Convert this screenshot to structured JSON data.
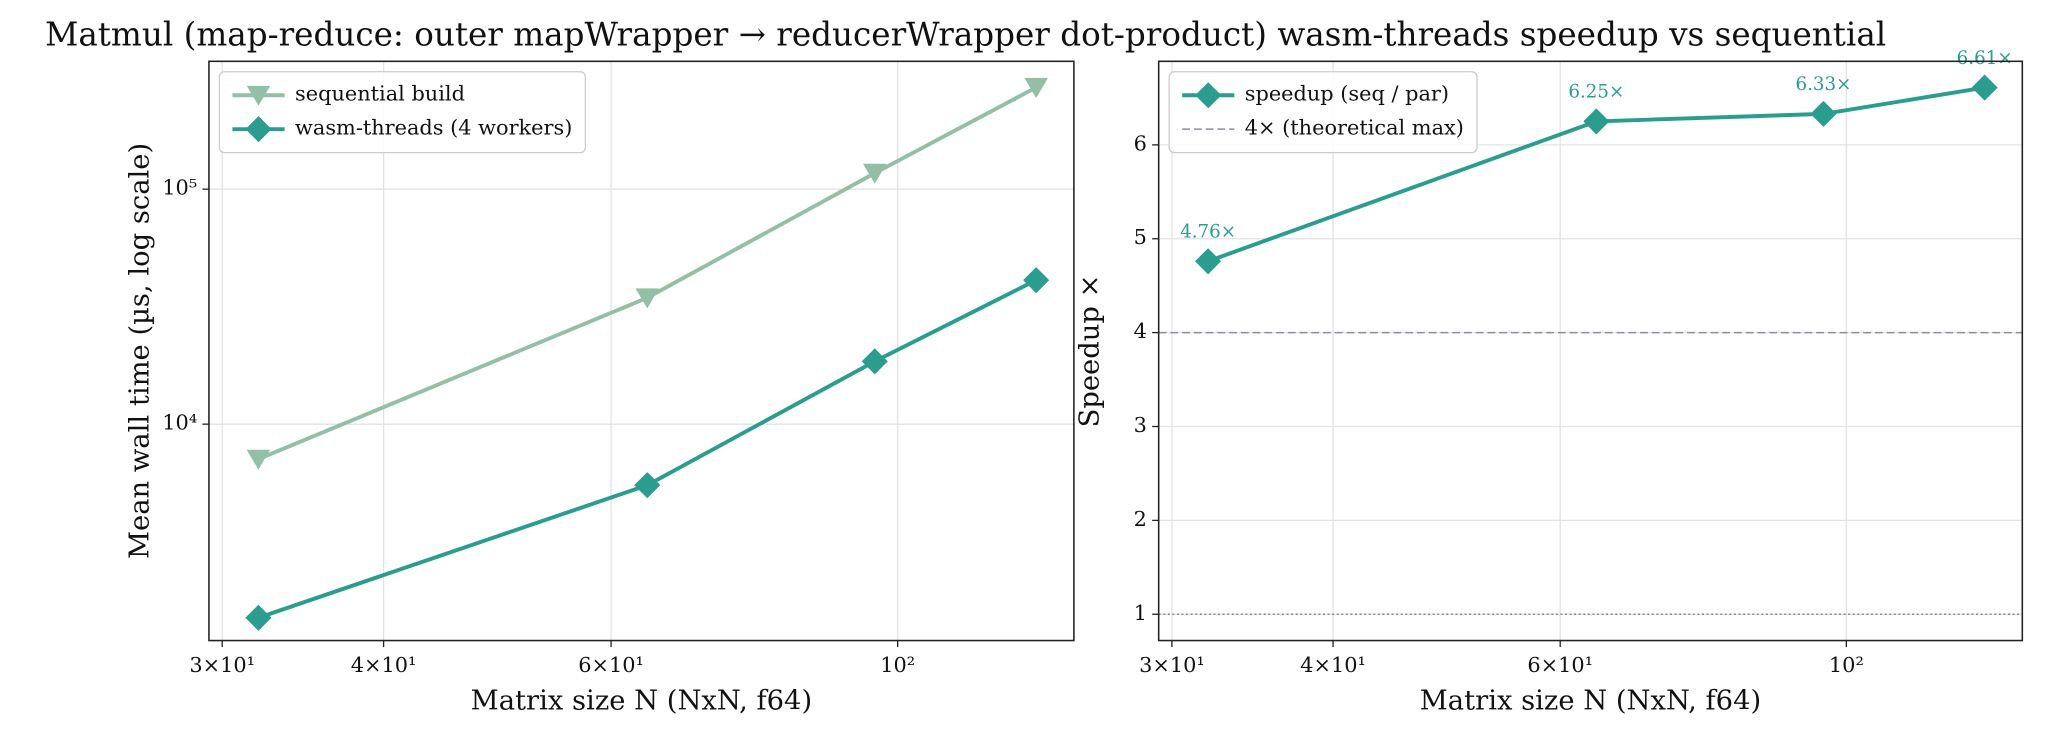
{
  "title": "Matmul (map-reduce: outer mapWrapper → reducerWrapper dot-product) wasm-threads speedup vs sequential",
  "chart_data": [
    {
      "type": "line",
      "x_label": "Matrix size N (NxN, f64)",
      "y_label": "Mean wall time (µs, log scale)",
      "x": [
        32,
        64,
        96,
        128
      ],
      "series": [
        {
          "name": "sequential build",
          "color": "#94bfa7",
          "marker": "triangle-down",
          "values": [
            7100,
            34500,
            117000,
            271000
          ]
        },
        {
          "name": "wasm-threads (4 workers)",
          "color": "#2a9d8f",
          "marker": "diamond",
          "values": [
            1500,
            5500,
            18500,
            41000
          ]
        }
      ],
      "xlim": [
        29.3,
        136.9
      ],
      "ylim": [
        1200,
        350000
      ],
      "xticks": [
        {
          "value": 30,
          "label": "3×10¹"
        },
        {
          "value": 40,
          "label": "4×10¹"
        },
        {
          "value": 60,
          "label": "6×10¹"
        },
        {
          "value": 100,
          "label": "10²"
        }
      ],
      "yticks": [
        {
          "value": 10000,
          "label": "10⁴"
        },
        {
          "value": 100000,
          "label": "10⁵"
        }
      ],
      "log_x": true,
      "log_y": true,
      "grid": true,
      "legend": "upper left"
    },
    {
      "type": "line",
      "x_label": "Matrix size N (NxN, f64)",
      "y_label": "Speedup ×",
      "x": [
        32,
        64,
        96,
        128
      ],
      "series": [
        {
          "name": "speedup (seq / par)",
          "color": "#2a9d8f",
          "marker": "diamond",
          "values": [
            4.76,
            6.25,
            6.33,
            6.61
          ],
          "value_labels": [
            "4.76×",
            "6.25×",
            "6.33×",
            "6.61×"
          ]
        }
      ],
      "reference_lines": [
        {
          "name": "4× (theoretical max)",
          "value": 4,
          "color": "#8a8fa0",
          "style": "dashed"
        },
        {
          "value": 1,
          "color": "#888888",
          "style": "dotted"
        }
      ],
      "xlim": [
        29.3,
        136.9
      ],
      "ylim": [
        0.72,
        6.89
      ],
      "xticks": [
        {
          "value": 30,
          "label": "3×10¹"
        },
        {
          "value": 40,
          "label": "4×10¹"
        },
        {
          "value": 60,
          "label": "6×10¹"
        },
        {
          "value": 100,
          "label": "10²"
        }
      ],
      "yticks": [
        1,
        2,
        3,
        4,
        5,
        6
      ],
      "log_x": true,
      "log_y": false,
      "grid": true,
      "legend": "upper left"
    }
  ]
}
